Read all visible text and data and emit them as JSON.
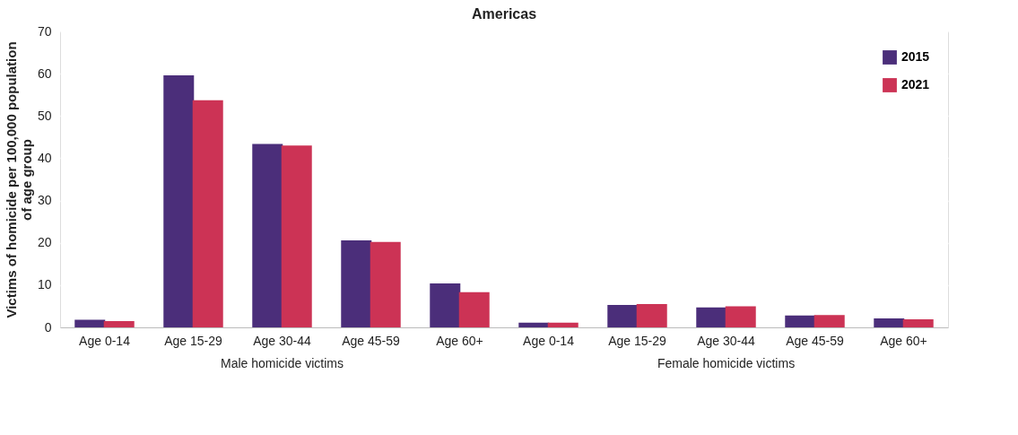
{
  "chart_data": {
    "type": "bar",
    "title": "Americas",
    "ylabel": "Victims of homicide per 100,000 population\nof age group",
    "categories": [
      "Age 0-14",
      "Age 15-29",
      "Age 30-44",
      "Age 45-59",
      "Age 60+",
      "Age 0-14",
      "Age 15-29",
      "Age 30-44",
      "Age 45-59",
      "Age 60+"
    ],
    "series": [
      {
        "name": "2015",
        "color": "#4b2e7a",
        "values": [
          1.8,
          59.6,
          43.4,
          20.6,
          10.4,
          1.1,
          5.3,
          4.7,
          2.8,
          2.1
        ]
      },
      {
        "name": "2021",
        "color": "#cc3355",
        "values": [
          1.5,
          53.7,
          43.0,
          20.2,
          8.3,
          1.1,
          5.5,
          5.0,
          2.9,
          1.9
        ]
      }
    ],
    "annotations": [
      "Male homicide victims",
      "Female homicide victims"
    ],
    "ylim": [
      0,
      70
    ],
    "yticks": [
      0,
      10,
      20,
      30,
      40,
      50,
      60,
      70
    ],
    "grid": "y",
    "legend": "top right"
  }
}
